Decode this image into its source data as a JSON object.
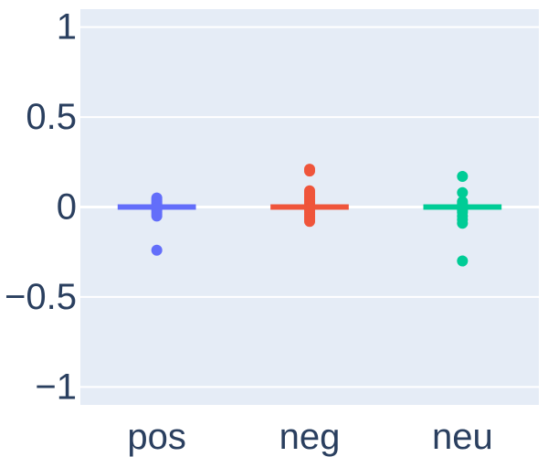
{
  "chart_data": {
    "type": "box",
    "categories": [
      "pos",
      "neg",
      "neu"
    ],
    "ylim": [
      -1.1,
      1.1
    ],
    "yticks": [
      1,
      0.5,
      0,
      -0.5,
      -1
    ],
    "ytick_labels": [
      "1",
      "0.5",
      "0",
      "−0.5",
      "−1"
    ],
    "grid": true,
    "plot_background": "#e5ecf6",
    "grid_color": "#ffffff",
    "tick_label_color": "#2a3f5f",
    "title": "",
    "xlabel": "",
    "ylabel": "",
    "series": [
      {
        "category": "pos",
        "color": "#636efa",
        "median": 0.0,
        "q1": -0.01,
        "q3": 0.01,
        "whisker_low": -0.015,
        "whisker_high": 0.015,
        "points": [
          0.05,
          0.04,
          0.03,
          0.02,
          0.01,
          0.005,
          -0.005,
          -0.01,
          -0.02,
          -0.03,
          -0.04,
          -0.05,
          -0.24
        ]
      },
      {
        "category": "neg",
        "color": "#ef553b",
        "median": 0.0,
        "q1": -0.01,
        "q3": 0.01,
        "whisker_low": -0.015,
        "whisker_high": 0.015,
        "points": [
          0.21,
          0.2,
          0.09,
          0.08,
          0.07,
          0.06,
          0.05,
          0.04,
          0.03,
          0.02,
          0.01,
          0.005,
          -0.005,
          -0.01,
          -0.02,
          -0.03,
          -0.04,
          -0.05,
          -0.06,
          -0.07,
          -0.08
        ]
      },
      {
        "category": "neu",
        "color": "#00cc96",
        "median": 0.0,
        "q1": -0.01,
        "q3": 0.01,
        "whisker_low": -0.015,
        "whisker_high": 0.015,
        "points": [
          0.17,
          0.08,
          0.03,
          0.02,
          0.01,
          0.005,
          -0.005,
          -0.01,
          -0.02,
          -0.03,
          -0.05,
          -0.07,
          -0.09,
          -0.3
        ]
      }
    ]
  }
}
